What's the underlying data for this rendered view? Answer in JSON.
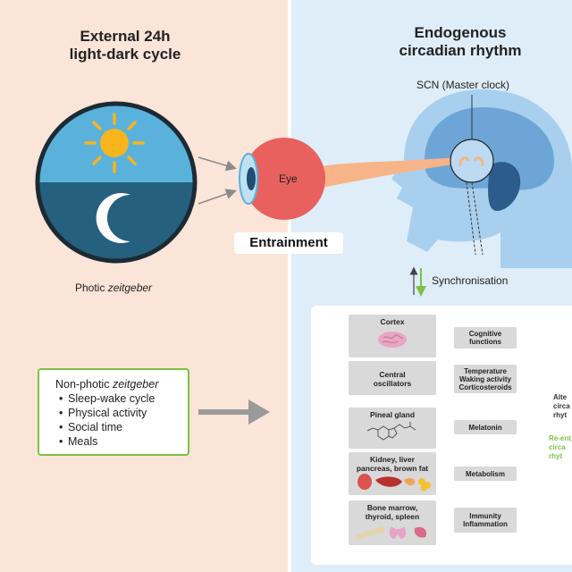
{
  "left": {
    "heading_line1": "External 24h",
    "heading_line2": "light-dark cycle",
    "photic_prefix": "Photic ",
    "photic_italic": "zeitgeber",
    "nonphotic": {
      "prefix": "Non-photic ",
      "italic": "zeitgeber",
      "items": [
        "Sleep-wake cycle",
        "Physical activity",
        "Social time",
        "Meals"
      ]
    }
  },
  "right": {
    "heading_line1": "Endogenous",
    "heading_line2": "circadian rhythm",
    "scn_label": "SCN (Master clock)",
    "eye_label": "Eye",
    "synchronisation_label": "Synchronisation"
  },
  "entrainment_label": "Entrainment",
  "panel": {
    "rows": [
      {
        "organ_lines": [
          "Cortex"
        ],
        "output_lines": [
          "Cognitive",
          "functions"
        ],
        "icon": "brain-icon"
      },
      {
        "organ_lines": [
          "Central",
          "oscillators"
        ],
        "output_lines": [
          "Temperature",
          "Waking activity",
          "Corticosteroids"
        ],
        "icon": ""
      },
      {
        "organ_lines": [
          "Pineal gland"
        ],
        "output_lines": [
          "Melatonin"
        ],
        "icon": "melatonin-molecule-icon"
      },
      {
        "organ_lines": [
          "Kidney, liver",
          "pancreas, brown fat"
        ],
        "output_lines": [
          "Metabolism"
        ],
        "icon": "organs-icon"
      },
      {
        "organ_lines": [
          "Bone marrow,",
          "thyroid, spleen"
        ],
        "output_lines": [
          "Immunity",
          "Inflammation"
        ],
        "icon": "bone-thyroid-spleen-icon"
      }
    ],
    "altered_lines": [
      "Alte",
      "circa",
      "rhyt"
    ],
    "reentrained_lines": [
      "Re-ent",
      "circa",
      "rhyt"
    ]
  },
  "colors": {
    "left_bg": "#fbe4d8",
    "right_bg": "#deedf8",
    "green": "#7cc142",
    "head_blue": "#a9cfee",
    "eye_red": "#e8615f"
  }
}
